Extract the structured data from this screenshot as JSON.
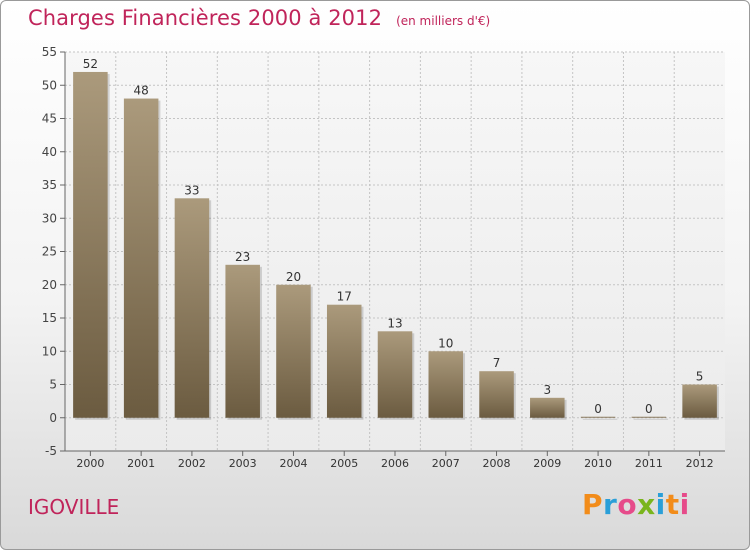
{
  "chart_data": {
    "type": "bar",
    "title": "Charges Financières 2000 à 2012",
    "subtitle": "(en milliers d'€)",
    "categories": [
      "2000",
      "2001",
      "2002",
      "2003",
      "2004",
      "2005",
      "2006",
      "2007",
      "2008",
      "2009",
      "2010",
      "2011",
      "2012"
    ],
    "values": [
      52,
      48,
      33,
      23,
      20,
      17,
      13,
      10,
      7,
      3,
      0,
      0,
      5
    ],
    "ylim": [
      -5,
      55
    ],
    "yticks": [
      -5,
      0,
      5,
      10,
      15,
      20,
      25,
      30,
      35,
      40,
      45,
      50,
      55
    ],
    "grid": true,
    "legend": "none",
    "bar_color": "#7b6a4e",
    "title_color": "#c0245a"
  },
  "commune": "IGOVILLE",
  "brand": {
    "letters": [
      "P",
      "r",
      "o",
      "x",
      "i",
      "t",
      "i"
    ],
    "colors": [
      "#f28c1a",
      "#2a9fd8",
      "#e64b8a",
      "#7ab51d",
      "#2a9fd8",
      "#f28c1a",
      "#e64b8a"
    ]
  }
}
